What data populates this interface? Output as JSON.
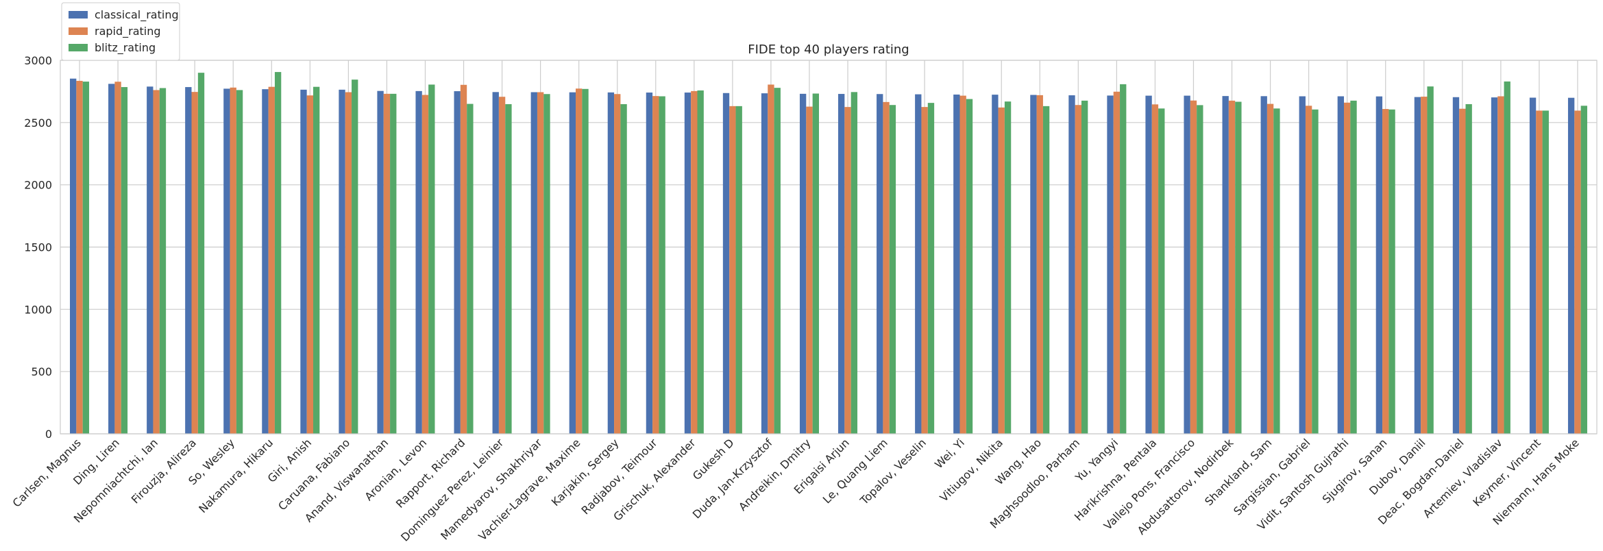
{
  "chart_data": {
    "type": "bar",
    "title": "FIDE top 40 players rating",
    "xlabel": "",
    "ylabel": "",
    "ylim": [
      0,
      3000
    ],
    "yticks": [
      0,
      500,
      1000,
      1500,
      2000,
      2500,
      3000
    ],
    "grid": true,
    "legend_position": "top-left, outside above plot",
    "categories": [
      "Carlsen, Magnus",
      "Ding, Liren",
      "Nepomniachtchi, Ian",
      "Firouzja, Alireza",
      "So, Wesley",
      "Nakamura, Hikaru",
      "Giri, Anish",
      "Caruana, Fabiano",
      "Anand, Viswanathan",
      "Aronian, Levon",
      "Rapport, Richard",
      "Dominguez Perez, Leinier",
      "Mamedyarov, Shakhriyar",
      "Vachier-Lagrave, Maxime",
      "Karjakin, Sergey",
      "Radjabov, Teimour",
      "Grischuk, Alexander",
      "Gukesh D",
      "Duda, Jan-Krzysztof",
      "Andreikin, Dmitry",
      "Erigaisi Arjun",
      "Le, Quang Liem",
      "Topalov, Veselin",
      "Wei, Yi",
      "Vitiugov, Nikita",
      "Wang, Hao",
      "Maghsoodloo, Parham",
      "Yu, Yangyi",
      "Harikrishna, Pentala",
      "Vallejo Pons, Francisco",
      "Abdusattorov, Nodirbek",
      "Shankland, Sam",
      "Sargissian, Gabriel",
      "Vidit, Santosh Gujrathi",
      "Sjugirov, Sanan",
      "Dubov, Daniil",
      "Deac, Bogdan-Daniel",
      "Artemiev, Vladislav",
      "Keymer, Vincent",
      "Niemann, Hans Moke"
    ],
    "series": [
      {
        "name": "classical_rating",
        "color": "#4c72b0",
        "values": [
          2853,
          2811,
          2789,
          2785,
          2772,
          2768,
          2764,
          2764,
          2754,
          2753,
          2752,
          2745,
          2744,
          2743,
          2742,
          2741,
          2741,
          2737,
          2735,
          2731,
          2730,
          2729,
          2727,
          2725,
          2724,
          2722,
          2719,
          2717,
          2716,
          2716,
          2713,
          2712,
          2711,
          2711,
          2710,
          2705,
          2704,
          2702,
          2700,
          2699
        ]
      },
      {
        "name": "rapid_rating",
        "color": "#dd8452",
        "values": [
          2835,
          2828,
          2761,
          2746,
          2781,
          2787,
          2718,
          2744,
          2731,
          2722,
          2803,
          2707,
          2744,
          2773,
          2729,
          2713,
          2753,
          2632,
          2805,
          2628,
          2625,
          2665,
          2625,
          2716,
          2621,
          2720,
          2641,
          2748,
          2646,
          2677,
          2676,
          2650,
          2635,
          2660,
          2609,
          2708,
          2611,
          2711,
          2596,
          2596
        ]
      },
      {
        "name": "blitz_rating",
        "color": "#55a868",
        "values": [
          2829,
          2785,
          2777,
          2900,
          2761,
          2906,
          2787,
          2845,
          2731,
          2805,
          2650,
          2648,
          2729,
          2770,
          2648,
          2711,
          2758,
          2632,
          2779,
          2733,
          2745,
          2641,
          2658,
          2689,
          2669,
          2632,
          2676,
          2808,
          2613,
          2640,
          2667,
          2613,
          2605,
          2676,
          2605,
          2790,
          2648,
          2830,
          2596,
          2635
        ]
      }
    ]
  }
}
